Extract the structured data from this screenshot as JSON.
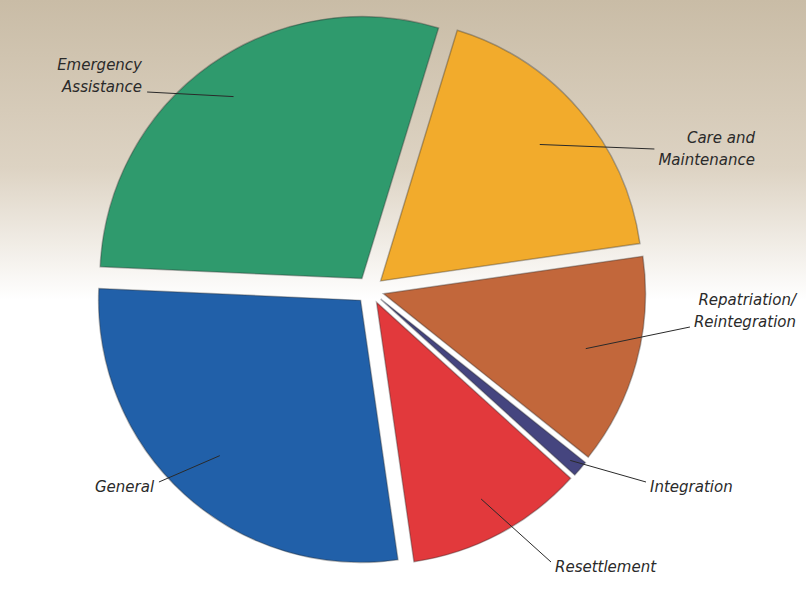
{
  "chart_data": {
    "type": "pie",
    "categories": [
      "Care and Maintenance",
      "Repatriation/Reintegration",
      "Integration",
      "Resettlement",
      "General",
      "Emergency Assistance"
    ],
    "values": [
      18,
      13,
      1,
      11,
      28,
      29
    ],
    "colors": [
      "#f2ab2c",
      "#c2673b",
      "#45457f",
      "#e2393c",
      "#2160a9",
      "#2f9a6d"
    ]
  }
}
